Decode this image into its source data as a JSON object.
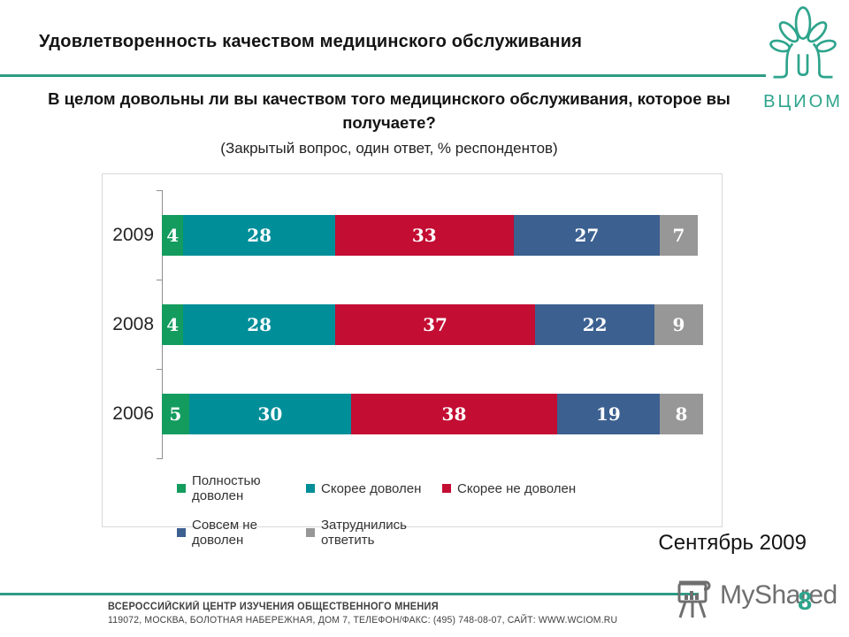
{
  "header": {
    "title": "Удовлетворенность качеством медицинского обслуживания",
    "logo_text": "ВЦИОМ"
  },
  "question": {
    "line": "В целом довольны ли вы качеством того медицинского обслуживания, которое вы получаете?",
    "note": "(Закрытый вопрос, один ответ, % респондентов)"
  },
  "chart_data": {
    "type": "bar",
    "orientation": "horizontal",
    "stacked": true,
    "categories": [
      "2009",
      "2008",
      "2006"
    ],
    "series": [
      {
        "name": "Полностью доволен",
        "color": "#149C5F",
        "values": [
          4,
          4,
          5
        ]
      },
      {
        "name": "Скорее доволен",
        "color": "#008E99",
        "values": [
          28,
          28,
          30
        ]
      },
      {
        "name": "Скорее не доволен",
        "color": "#C30D33",
        "values": [
          33,
          37,
          38
        ]
      },
      {
        "name": "Совсем не доволен",
        "color": "#3C6090",
        "values": [
          27,
          22,
          19
        ]
      },
      {
        "name": "Затруднились ответить",
        "color": "#979797",
        "values": [
          7,
          9,
          8
        ]
      }
    ],
    "xlim": [
      0,
      100
    ],
    "value_labels": true,
    "grid": false,
    "legend_position": "bottom"
  },
  "date_label": "Сентябрь 2009",
  "footer": {
    "org": "ВСЕРОССИЙСКИЙ ЦЕНТР ИЗУЧЕНИЯ ОБЩЕСТВЕННОГО МНЕНИЯ",
    "address": "119072, МОСКВА, БОЛОТНАЯ НАБЕРЕЖНАЯ, ДОМ 7, ТЕЛЕФОН/ФАКС: (495) 748-08-07, САЙТ: WWW.WCIOM.RU"
  },
  "watermark": {
    "text": "MyShared",
    "page_number": "8"
  },
  "colors": {
    "accent_teal": "#2E9B85",
    "logo_teal": "#2EA48C"
  }
}
